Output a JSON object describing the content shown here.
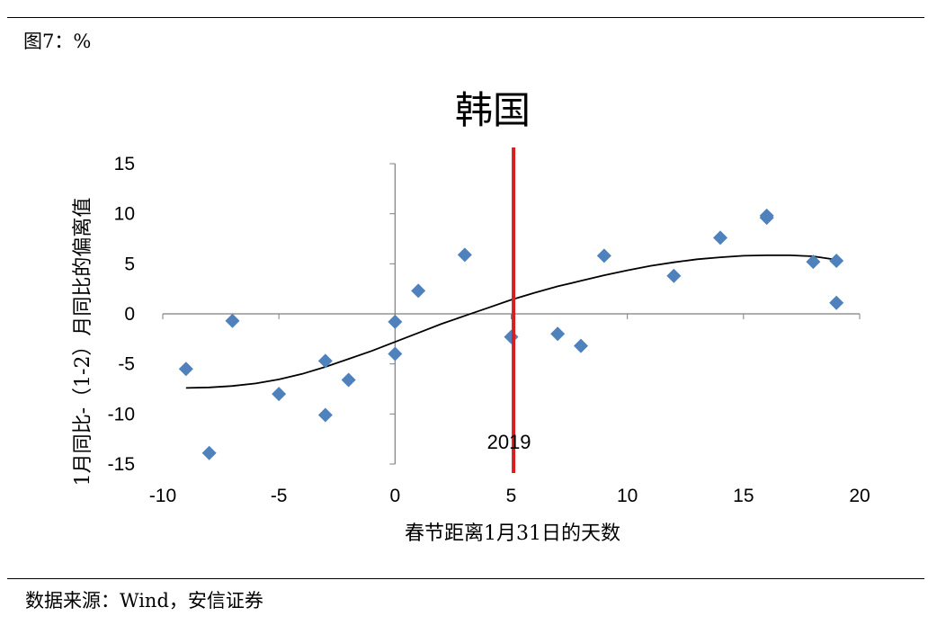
{
  "figure_label": "图7：%",
  "source": "数据来源：Wind，安信证券",
  "colors": {
    "points": "#4f81bd",
    "trend": "#000000",
    "marker_line": "#d61f1f",
    "axis": "#7f7f7f"
  },
  "chart_data": {
    "type": "scatter",
    "title": "韩国",
    "xlabel": "春节距离1月31日的天数",
    "ylabel": "1月同比-（1-2）月同比的偏离值",
    "xlim": [
      -10,
      20
    ],
    "ylim": [
      -15,
      15
    ],
    "xticks": [
      -10,
      -5,
      0,
      5,
      10,
      15,
      20
    ],
    "yticks": [
      -15,
      -10,
      -5,
      0,
      5,
      10,
      15
    ],
    "xtick_labels": [
      "-10",
      "-5",
      "0",
      "5",
      "10",
      "15",
      "20"
    ],
    "ytick_labels": [
      "-15",
      "-10",
      "-5",
      "0",
      "5",
      "10",
      "15"
    ],
    "series": [
      {
        "marker": "diamond",
        "points": [
          [
            -9,
            -5.5
          ],
          [
            -8,
            -13.9
          ],
          [
            -7,
            -0.7
          ],
          [
            -5,
            -8.0
          ],
          [
            -3,
            -4.7
          ],
          [
            -3,
            -10.1
          ],
          [
            -2,
            -6.6
          ],
          [
            0,
            -0.8
          ],
          [
            0,
            -4.0
          ],
          [
            1,
            2.3
          ],
          [
            3,
            5.9
          ],
          [
            5,
            -2.3
          ],
          [
            7,
            -2.0
          ],
          [
            8,
            -3.2
          ],
          [
            9,
            5.8
          ],
          [
            12,
            3.8
          ],
          [
            14,
            7.6
          ],
          [
            16,
            9.6
          ],
          [
            16,
            9.8
          ],
          [
            18,
            5.2
          ],
          [
            19,
            5.3
          ],
          [
            19,
            1.1
          ]
        ]
      }
    ],
    "trendline": {
      "type": "polynomial",
      "points": [
        [
          -9,
          -7.4
        ],
        [
          -8,
          -7.35
        ],
        [
          -7,
          -7.2
        ],
        [
          -6,
          -6.95
        ],
        [
          -5,
          -6.55
        ],
        [
          -4,
          -6.0
        ],
        [
          -3,
          -5.3
        ],
        [
          -2,
          -4.5
        ],
        [
          -1,
          -3.7
        ],
        [
          0,
          -2.8
        ],
        [
          1,
          -1.9
        ],
        [
          2,
          -1.0
        ],
        [
          3,
          -0.2
        ],
        [
          4,
          0.6
        ],
        [
          5,
          1.4
        ],
        [
          6,
          2.1
        ],
        [
          7,
          2.75
        ],
        [
          8,
          3.3
        ],
        [
          9,
          3.85
        ],
        [
          10,
          4.35
        ],
        [
          11,
          4.8
        ],
        [
          12,
          5.15
        ],
        [
          13,
          5.45
        ],
        [
          14,
          5.65
        ],
        [
          15,
          5.8
        ],
        [
          16,
          5.85
        ],
        [
          17,
          5.85
        ],
        [
          18,
          5.75
        ],
        [
          19,
          5.4
        ]
      ]
    },
    "reference_line": {
      "x": 5.1,
      "label": "2019"
    }
  }
}
